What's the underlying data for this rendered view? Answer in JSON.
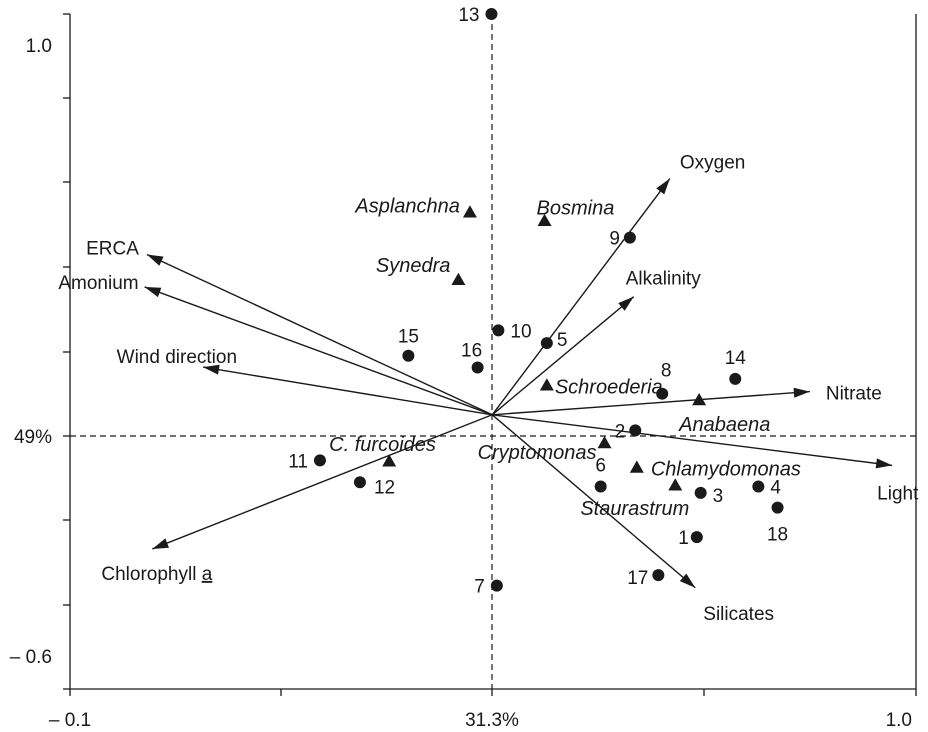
{
  "chart_data": {
    "type": "scatter",
    "title": "",
    "xlabel": "",
    "ylabel": "",
    "xlim": [
      -0.1,
      1.0
    ],
    "ylim": [
      -0.6,
      1.0
    ],
    "x_tick_labels": [
      "– 0.1",
      "31.3%",
      "1.0"
    ],
    "y_tick_labels": [
      "1.0",
      "49%",
      "– 0.6"
    ],
    "origin": [
      0.449,
      0.05
    ],
    "grid": false,
    "reference_lines": "dashed lines through the origin",
    "variables": [
      {
        "name": "Oxygen",
        "x": 0.68,
        "y": 0.61
      },
      {
        "name": "Alkalinity",
        "x": 0.633,
        "y": 0.33
      },
      {
        "name": "ERCA",
        "x": 0.0,
        "y": 0.43
      },
      {
        "name": "Amonium",
        "x": -0.003,
        "y": 0.353
      },
      {
        "name": "Wind direction",
        "x": 0.073,
        "y": 0.163
      },
      {
        "name": "Nitrate",
        "x": 0.862,
        "y": 0.105
      },
      {
        "name": "Light",
        "x": 0.969,
        "y": -0.07
      },
      {
        "name": "Silicates",
        "x": 0.713,
        "y": -0.36
      },
      {
        "name": "Chlorophyll a",
        "x": 0.007,
        "y": -0.268
      }
    ],
    "species": [
      {
        "name": "Asplanchna",
        "x": 0.42,
        "y": 0.53
      },
      {
        "name": "Bosmina",
        "x": 0.517,
        "y": 0.51
      },
      {
        "name": "Synedra",
        "x": 0.405,
        "y": 0.37
      },
      {
        "name": "Schroederia",
        "x": 0.52,
        "y": 0.12
      },
      {
        "name": "Anabaena",
        "x": 0.718,
        "y": 0.085
      },
      {
        "name": "Cryptomonas",
        "x": 0.595,
        "y": -0.017
      },
      {
        "name": "Chlamydomonas",
        "x": 0.637,
        "y": -0.075
      },
      {
        "name": "Staurastrum",
        "x": 0.687,
        "y": -0.117
      },
      {
        "name": "C. furcoides",
        "x": 0.315,
        "y": -0.06
      }
    ],
    "sites": [
      {
        "label": "13",
        "x": 0.448,
        "y": 1.0
      },
      {
        "label": "9",
        "x": 0.628,
        "y": 0.47
      },
      {
        "label": "10",
        "x": 0.457,
        "y": 0.25
      },
      {
        "label": "5",
        "x": 0.52,
        "y": 0.22
      },
      {
        "label": "15",
        "x": 0.34,
        "y": 0.19
      },
      {
        "label": "16",
        "x": 0.43,
        "y": 0.162
      },
      {
        "label": "8",
        "x": 0.67,
        "y": 0.1
      },
      {
        "label": "14",
        "x": 0.765,
        "y": 0.135
      },
      {
        "label": "2",
        "x": 0.635,
        "y": 0.013
      },
      {
        "label": "11",
        "x": 0.225,
        "y": -0.058
      },
      {
        "label": "12",
        "x": 0.277,
        "y": -0.11
      },
      {
        "label": "6",
        "x": 0.59,
        "y": -0.12
      },
      {
        "label": "3",
        "x": 0.72,
        "y": -0.135
      },
      {
        "label": "4",
        "x": 0.795,
        "y": -0.12
      },
      {
        "label": "18",
        "x": 0.82,
        "y": -0.17
      },
      {
        "label": "1",
        "x": 0.715,
        "y": -0.24
      },
      {
        "label": "17",
        "x": 0.665,
        "y": -0.33
      },
      {
        "label": "7",
        "x": 0.455,
        "y": -0.355
      }
    ]
  }
}
